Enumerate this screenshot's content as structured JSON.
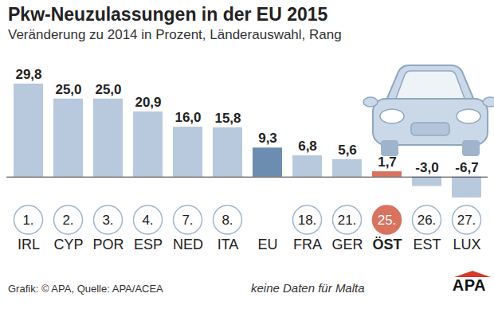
{
  "chart_data": {
    "type": "bar",
    "title": "Pkw-Neuzulassungen in der EU 2015",
    "subtitle": "Veränderung zu 2014 in Prozent, Länderauswahl, Rang",
    "categories": [
      "IRL",
      "CYP",
      "POR",
      "ESP",
      "NED",
      "ITA",
      "EU",
      "FRA",
      "GER",
      "ÖST",
      "EST",
      "LUX"
    ],
    "values": [
      29.8,
      25.0,
      25.0,
      20.9,
      16.0,
      15.8,
      9.3,
      6.8,
      5.6,
      1.7,
      -3.0,
      -6.7
    ],
    "value_labels": [
      "29,8",
      "25,0",
      "25,0",
      "20,9",
      "16,0",
      "15,8",
      "9,3",
      "6,8",
      "5,6",
      "1,7",
      "-3,0",
      "-6,7"
    ],
    "rank_labels": [
      "1.",
      "2.",
      "3.",
      "4.",
      "7.",
      "8.",
      null,
      "18.",
      "21.",
      "25.",
      "26.",
      "27."
    ],
    "colors": [
      "#b8c9dd",
      "#b8c9dd",
      "#b8c9dd",
      "#b8c9dd",
      "#b8c9dd",
      "#b8c9dd",
      "#6d8db0",
      "#b8c9dd",
      "#b8c9dd",
      "#d8735f",
      "#b8c9dd",
      "#b8c9dd"
    ],
    "data_labels": true,
    "tick_labels": "x",
    "source": "Grafik: © APA, Quelle: APA/ACEA",
    "note": "keine Daten für Malta",
    "logo": "APA"
  }
}
